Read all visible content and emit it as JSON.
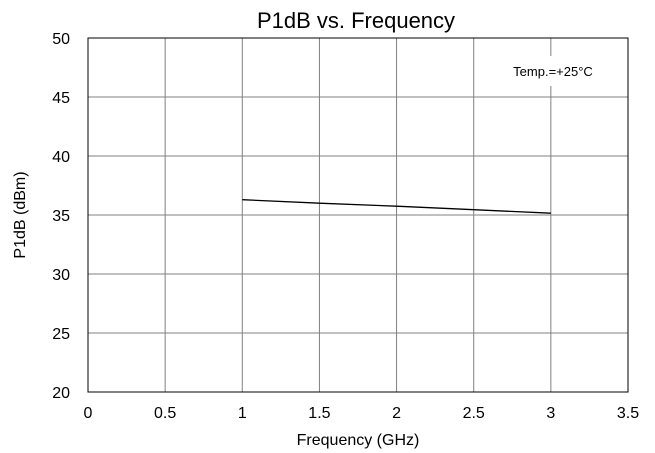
{
  "chart_data": {
    "type": "line",
    "title": "P1dB vs. Frequency",
    "xlabel": "Frequency (GHz)",
    "ylabel": "P1dB (dBm)",
    "annotation": "Temp.=+25°C",
    "xlim": [
      0,
      3.5
    ],
    "ylim": [
      20,
      50
    ],
    "x_ticks": [
      "0",
      "0.5",
      "1",
      "1.5",
      "2",
      "2.5",
      "3",
      "3.5"
    ],
    "y_ticks": [
      "20",
      "25",
      "30",
      "35",
      "40",
      "45",
      "50"
    ],
    "grid": true,
    "series": [
      {
        "x": [
          1.0,
          1.5,
          2.0,
          2.5,
          3.0
        ],
        "y": [
          36.3,
          36.0,
          35.75,
          35.45,
          35.15
        ]
      }
    ],
    "colors": {
      "line": "#000000",
      "grid": "#808080",
      "frame": "#000000"
    }
  }
}
